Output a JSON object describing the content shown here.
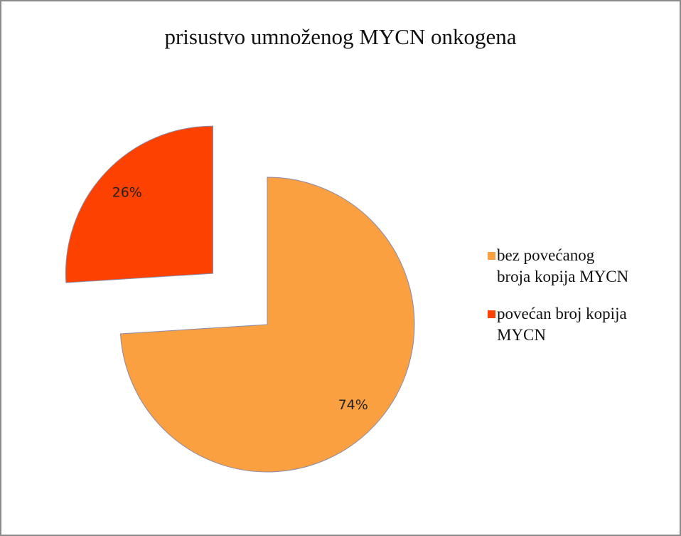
{
  "chart_data": {
    "type": "pie",
    "title": "prisustvo umnoženog  MYCN onkogena",
    "categories": [
      "bez povećanog broja kopija MYCN",
      "povećan broj kopija MYCN"
    ],
    "values": [
      74,
      26
    ],
    "value_labels": [
      "74%",
      "26%"
    ],
    "colors": [
      "#fba040",
      "#fc4100"
    ],
    "legend": "right"
  }
}
